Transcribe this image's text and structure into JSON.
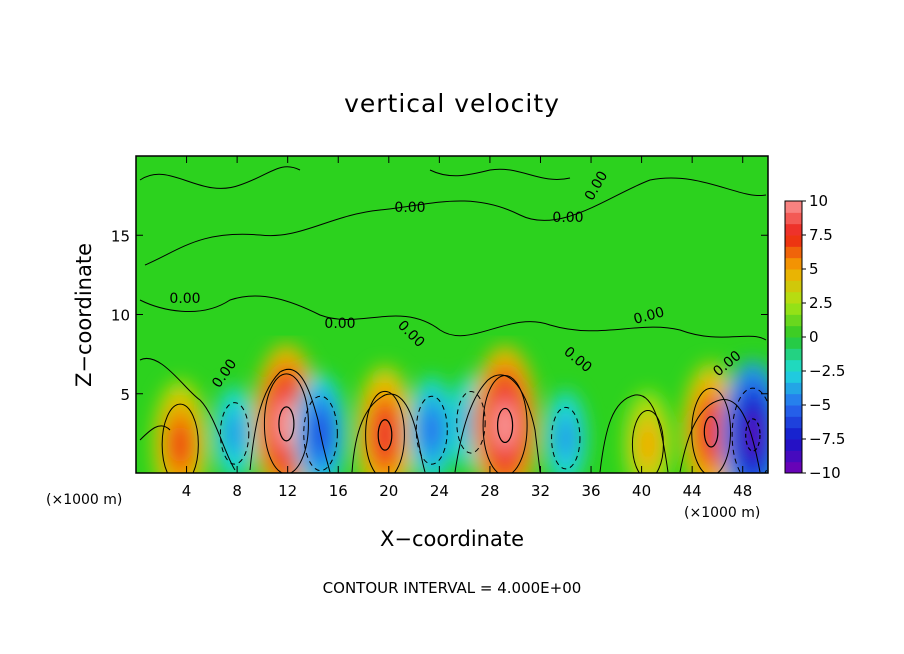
{
  "chart_data": {
    "type": "heatmap",
    "title": "vertical velocity",
    "xlabel": "X−coordinate",
    "ylabel": "Z−coordinate",
    "x_unit_left": "(×1000 m)",
    "x_unit_right": "(×1000 m)",
    "xlim": [
      0,
      50
    ],
    "ylim": [
      0,
      20
    ],
    "xticks": [
      4,
      8,
      12,
      16,
      20,
      24,
      28,
      32,
      36,
      40,
      44,
      48
    ],
    "xtick_labels": [
      "4",
      "8",
      "12",
      "16",
      "20",
      "24",
      "28",
      "32",
      "36",
      "40",
      "44",
      "48"
    ],
    "yticks": [
      5,
      10,
      15
    ],
    "ytick_labels": [
      "5",
      "10",
      "15"
    ],
    "colorbar": {
      "min": -10,
      "max": 10,
      "ticks": [
        10,
        7.5,
        5,
        2.5,
        0,
        -2.5,
        -5,
        -7.5,
        -10
      ],
      "tick_labels": [
        "10",
        "7.5",
        "5",
        "2.5",
        "0",
        "−2.5",
        "−5",
        "−7.5",
        "−10"
      ]
    },
    "contour_labels": [
      "0.00",
      "0.00",
      "0.00",
      "0.00",
      "0.00",
      "0.00",
      "0.00",
      "0.00",
      "0.00",
      "0.00"
    ],
    "features": [
      {
        "x": 3.5,
        "z": 1.8,
        "w": 7
      },
      {
        "x": 7.8,
        "z": 2.5,
        "w": -4
      },
      {
        "x": 11.9,
        "z": 3.1,
        "w": 10
      },
      {
        "x": 14.6,
        "z": 2.5,
        "w": -6
      },
      {
        "x": 19.7,
        "z": 2.4,
        "w": 8
      },
      {
        "x": 23.4,
        "z": 2.7,
        "w": -5
      },
      {
        "x": 26.5,
        "z": 3.2,
        "w": -4
      },
      {
        "x": 29.2,
        "z": 3.0,
        "w": 10
      },
      {
        "x": 34.0,
        "z": 2.2,
        "w": -4
      },
      {
        "x": 40.5,
        "z": 1.8,
        "w": 5
      },
      {
        "x": 45.5,
        "z": 2.6,
        "w": 8
      },
      {
        "x": 48.8,
        "z": 2.4,
        "w": -9
      }
    ],
    "footer": "CONTOUR INTERVAL = 4.000E+00"
  }
}
